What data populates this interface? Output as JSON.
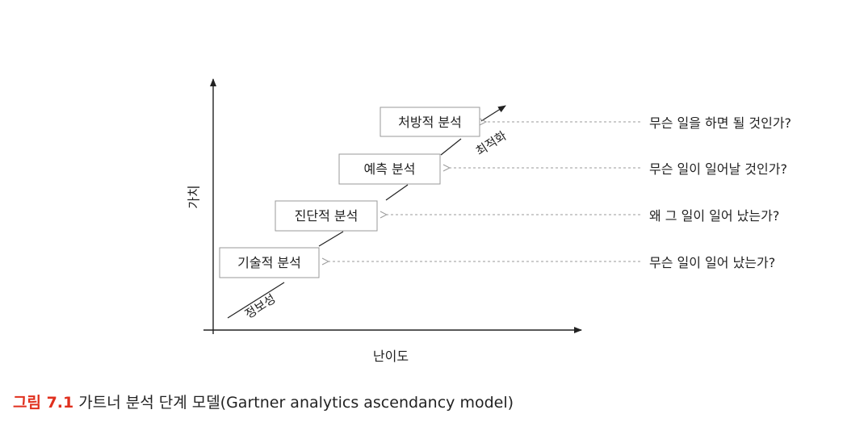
{
  "diagram": {
    "y_axis_label": "가치",
    "x_axis_label": "난이도",
    "diagonal_labels": {
      "bottom": "정보성",
      "top": "최적화"
    },
    "stages": [
      {
        "label": "기술적 분석",
        "question": "무슨 일이 일어 났는가?"
      },
      {
        "label": "진단적 분석",
        "question": "왜 그 일이 일어 났는가?"
      },
      {
        "label": "예측 분석",
        "question": "무슨 일이 일어날 것인가?"
      },
      {
        "label": "처방적 분석",
        "question": "무슨 일을 하면 될 것인가?"
      }
    ]
  },
  "caption": {
    "label": "그림 7.1",
    "title": "가트너 분석 단계 모델(Gartner analytics ascendancy model)"
  },
  "colors": {
    "caption_label": "#e0301e",
    "text": "#222222",
    "box_border": "#999999",
    "dashed_arrow": "#9a9a9a"
  }
}
